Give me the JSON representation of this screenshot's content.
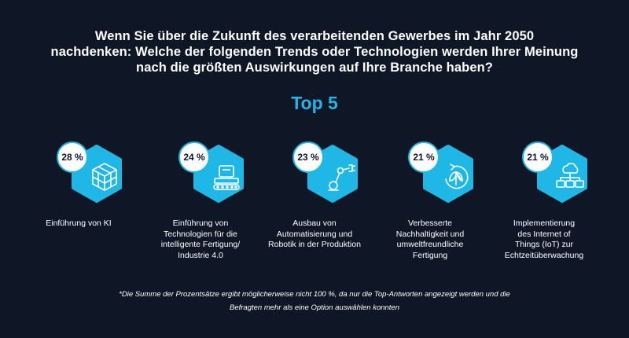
{
  "question": {
    "line1": "Wenn Sie über die Zukunft des verarbeitenden Gewerbes im Jahr 2050",
    "line2": "nachdenken: Welche der folgenden Trends oder Technologien werden Ihrer Meinung",
    "line3": "nach die größten Auswirkungen auf Ihre Branche haben?"
  },
  "heading": "Top 5",
  "accent_color": "#1eb7e6",
  "background_color": "#0f1626",
  "items": [
    {
      "percent": "28 %",
      "icon": "ai-chip-icon",
      "label_lines": [
        "Einführung von KI"
      ]
    },
    {
      "percent": "24 %",
      "icon": "production-line-icon",
      "label_lines": [
        "Einführung von",
        "Technologien für die",
        "intelligente Fertigung/",
        "Industrie 4.0"
      ]
    },
    {
      "percent": "23 %",
      "icon": "robot-arm-icon",
      "label_lines": [
        "Ausbau von",
        "Automatisierung und",
        "Robotik in der Produktion"
      ]
    },
    {
      "percent": "21 %",
      "icon": "leaf-cycle-icon",
      "label_lines": [
        "Verbesserte",
        "Nachhaltigkeit und",
        "umweltfreundliche",
        "Fertigung"
      ]
    },
    {
      "percent": "21 %",
      "icon": "cloud-network-icon",
      "label_lines": [
        "Implementierung",
        "des Internet of",
        "Things (IoT) zur",
        "Echtzeitüberwachung"
      ]
    }
  ],
  "footnote": {
    "line1": "*Die Summe der Prozentsätze ergibt möglicherweise nicht 100 %, da nur die Top-Antworten angezeigt werden und die",
    "line2": "Befragten mehr als eine Option auswählen konnten"
  }
}
